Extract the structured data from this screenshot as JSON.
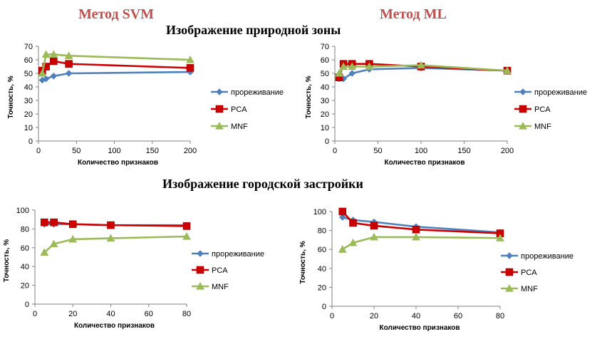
{
  "headers": {
    "method_svm": "Метод SVM",
    "method_ml": "Метод ML",
    "section_natural": "Изображение природной зоны",
    "section_urban": "Изображение городской застройки"
  },
  "colors": {
    "thinning": "#4f81bd",
    "pca": "#cc0000",
    "mnf": "#9bbb59",
    "axis": "#808080"
  },
  "chart_data": [
    {
      "type": "line",
      "xlabel": "Количество признаков",
      "ylabel": "Точность, %",
      "xlim": [
        0,
        200
      ],
      "ylim": [
        0,
        70
      ],
      "xticks": [
        0,
        50,
        100,
        150,
        200
      ],
      "yticks": [
        0,
        10,
        20,
        30,
        40,
        50,
        60,
        70
      ],
      "grid": false,
      "legend": "right",
      "series": [
        {
          "name": "прореживание",
          "marker": "diamond",
          "color": "#4f81bd",
          "x": [
            5,
            10,
            20,
            40,
            200
          ],
          "y": [
            45,
            46,
            48,
            50,
            51
          ]
        },
        {
          "name": "PCA",
          "marker": "square",
          "color": "#cc0000",
          "x": [
            5,
            10,
            20,
            40,
            200
          ],
          "y": [
            52,
            55,
            59,
            57,
            54
          ]
        },
        {
          "name": "MNF",
          "marker": "triangle",
          "color": "#9bbb59",
          "x": [
            5,
            10,
            20,
            40,
            200
          ],
          "y": [
            50,
            64,
            64,
            63,
            60
          ]
        }
      ]
    },
    {
      "type": "line",
      "xlabel": "Количество признаков",
      "ylabel": "Точность, %",
      "xlim": [
        0,
        200
      ],
      "ylim": [
        0,
        70
      ],
      "xticks": [
        0,
        50,
        100,
        150,
        200
      ],
      "yticks": [
        0,
        10,
        20,
        30,
        40,
        50,
        60,
        70
      ],
      "grid": false,
      "legend": "right",
      "series": [
        {
          "name": "прореживание",
          "marker": "diamond",
          "color": "#4f81bd",
          "x": [
            5,
            10,
            20,
            40,
            100,
            200
          ],
          "y": [
            46,
            46,
            50,
            53,
            54,
            52
          ]
        },
        {
          "name": "PCA",
          "marker": "square",
          "color": "#cc0000",
          "x": [
            5,
            10,
            20,
            40,
            100,
            200
          ],
          "y": [
            47,
            57,
            57,
            57,
            55,
            52
          ]
        },
        {
          "name": "MNF",
          "marker": "triangle",
          "color": "#9bbb59",
          "x": [
            5,
            10,
            20,
            40,
            100,
            200
          ],
          "y": [
            50,
            55,
            55,
            55,
            56,
            52
          ]
        }
      ]
    },
    {
      "type": "line",
      "xlabel": "Количество признаков",
      "ylabel": "Точность, %",
      "xlim": [
        0,
        80
      ],
      "ylim": [
        0,
        100
      ],
      "xticks": [
        0,
        20,
        40,
        60,
        80
      ],
      "yticks": [
        0,
        20,
        40,
        60,
        80,
        100
      ],
      "grid": false,
      "legend": "right",
      "series": [
        {
          "name": "прореживание",
          "marker": "diamond",
          "color": "#4f81bd",
          "x": [
            5,
            10,
            20,
            40,
            80
          ],
          "y": [
            85,
            85,
            85,
            84,
            84
          ]
        },
        {
          "name": "PCA",
          "marker": "square",
          "color": "#cc0000",
          "x": [
            5,
            10,
            20,
            40,
            80
          ],
          "y": [
            87,
            87,
            85,
            84,
            83
          ]
        },
        {
          "name": "MNF",
          "marker": "triangle",
          "color": "#9bbb59",
          "x": [
            5,
            10,
            20,
            40,
            80
          ],
          "y": [
            55,
            64,
            69,
            70,
            72
          ]
        }
      ]
    },
    {
      "type": "line",
      "xlabel": "Количество признаков",
      "ylabel": "Точность, %",
      "xlim": [
        0,
        80
      ],
      "ylim": [
        0,
        100
      ],
      "xticks": [
        0,
        20,
        40,
        60,
        80
      ],
      "yticks": [
        0,
        20,
        40,
        60,
        80,
        100
      ],
      "grid": false,
      "legend": "right",
      "series": [
        {
          "name": "прореживание",
          "marker": "diamond",
          "color": "#4f81bd",
          "x": [
            5,
            10,
            20,
            40,
            80
          ],
          "y": [
            94,
            91,
            89,
            84,
            78
          ]
        },
        {
          "name": "PCA",
          "marker": "square",
          "color": "#cc0000",
          "x": [
            5,
            10,
            20,
            40,
            80
          ],
          "y": [
            100,
            88,
            85,
            81,
            77
          ]
        },
        {
          "name": "MNF",
          "marker": "triangle",
          "color": "#9bbb59",
          "x": [
            5,
            10,
            20,
            40,
            80
          ],
          "y": [
            60,
            67,
            73,
            73,
            72
          ]
        }
      ]
    }
  ]
}
